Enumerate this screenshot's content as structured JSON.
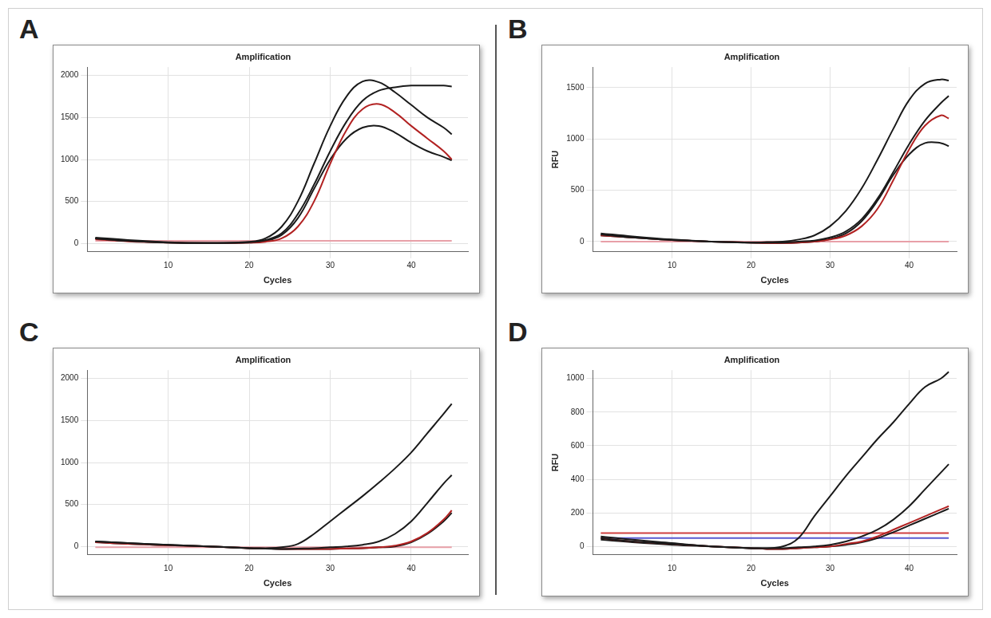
{
  "chart_data": [
    {
      "panel": "A",
      "type": "line",
      "title": "Amplification",
      "xlabel": "Cycles",
      "x": [
        1,
        5,
        10,
        15,
        20,
        22,
        24,
        26,
        28,
        30,
        32,
        34,
        36,
        38,
        40,
        42,
        44,
        45
      ],
      "xlim": [
        0,
        47
      ],
      "xticks": [
        10,
        20,
        30,
        40
      ],
      "ylim": [
        -100,
        2100
      ],
      "yticks": [
        0,
        500,
        1000,
        1500,
        2000
      ],
      "grid": true,
      "series": [
        {
          "color": "#1a1a1a",
          "values": [
            60,
            30,
            10,
            5,
            20,
            60,
            200,
            500,
            950,
            1400,
            1750,
            1930,
            1920,
            1800,
            1650,
            1500,
            1380,
            1300
          ]
        },
        {
          "color": "#1a1a1a",
          "values": [
            60,
            30,
            10,
            5,
            15,
            40,
            120,
            350,
            700,
            1100,
            1450,
            1700,
            1820,
            1860,
            1880,
            1880,
            1880,
            1870
          ]
        },
        {
          "color": "#b22222",
          "values": [
            50,
            25,
            10,
            5,
            10,
            20,
            60,
            200,
            500,
            950,
            1350,
            1600,
            1660,
            1560,
            1400,
            1250,
            1100,
            1000
          ]
        },
        {
          "color": "#1a1a1a",
          "values": [
            70,
            40,
            15,
            5,
            10,
            30,
            100,
            300,
            650,
            1000,
            1250,
            1380,
            1400,
            1320,
            1200,
            1100,
            1030,
            990
          ]
        },
        {
          "color": "#e8a0a8",
          "values": [
            30,
            30,
            30,
            30,
            30,
            30,
            30,
            30,
            30,
            30,
            30,
            30,
            30,
            30,
            30,
            30,
            30,
            30
          ]
        }
      ]
    },
    {
      "panel": "B",
      "type": "line",
      "title": "Amplification",
      "xlabel": "Cycles",
      "ylabel": "RFU",
      "x": [
        1,
        5,
        10,
        15,
        20,
        22,
        24,
        26,
        28,
        30,
        32,
        34,
        36,
        38,
        40,
        42,
        44,
        45
      ],
      "xlim": [
        0,
        46
      ],
      "xticks": [
        10,
        20,
        30,
        40
      ],
      "ylim": [
        -100,
        1700
      ],
      "yticks": [
        0,
        500,
        1000,
        1500
      ],
      "grid": true,
      "series": [
        {
          "color": "#1a1a1a",
          "values": [
            80,
            50,
            20,
            0,
            -10,
            -5,
            0,
            20,
            60,
            150,
            300,
            520,
            800,
            1100,
            1380,
            1540,
            1580,
            1570
          ]
        },
        {
          "color": "#1a1a1a",
          "values": [
            70,
            40,
            15,
            0,
            -10,
            -10,
            -10,
            0,
            10,
            40,
            100,
            220,
            420,
            680,
            950,
            1180,
            1350,
            1420
          ]
        },
        {
          "color": "#b22222",
          "values": [
            60,
            40,
            15,
            0,
            -10,
            -15,
            -15,
            -10,
            0,
            20,
            60,
            150,
            320,
            600,
            900,
            1130,
            1230,
            1200
          ]
        },
        {
          "color": "#1a1a1a",
          "values": [
            60,
            40,
            15,
            0,
            -10,
            -15,
            -15,
            -10,
            0,
            25,
            80,
            200,
            400,
            650,
            850,
            960,
            960,
            930
          ]
        },
        {
          "color": "#e8a0a8",
          "values": [
            0,
            0,
            0,
            0,
            0,
            0,
            0,
            0,
            0,
            0,
            0,
            0,
            0,
            0,
            0,
            0,
            0,
            0
          ]
        }
      ]
    },
    {
      "panel": "C",
      "type": "line",
      "title": "Amplification",
      "xlabel": "Cycles",
      "x": [
        1,
        5,
        10,
        15,
        20,
        22,
        24,
        26,
        28,
        30,
        32,
        34,
        36,
        38,
        40,
        42,
        44,
        45
      ],
      "xlim": [
        0,
        47
      ],
      "xticks": [
        10,
        20,
        30,
        40
      ],
      "ylim": [
        -100,
        2100
      ],
      "yticks": [
        0,
        500,
        1000,
        1500,
        2000
      ],
      "grid": true,
      "series": [
        {
          "color": "#1a1a1a",
          "values": [
            60,
            40,
            20,
            0,
            -20,
            -20,
            -10,
            30,
            150,
            300,
            450,
            600,
            760,
            930,
            1120,
            1350,
            1580,
            1700
          ]
        },
        {
          "color": "#1a1a1a",
          "values": [
            60,
            40,
            20,
            0,
            -20,
            -25,
            -30,
            -25,
            -20,
            -10,
            0,
            20,
            60,
            150,
            300,
            520,
            750,
            850
          ]
        },
        {
          "color": "#b22222",
          "values": [
            50,
            30,
            15,
            0,
            -20,
            -25,
            -30,
            -30,
            -30,
            -30,
            -25,
            -20,
            -10,
            10,
            60,
            160,
            320,
            430
          ]
        },
        {
          "color": "#1a1a1a",
          "values": [
            50,
            30,
            15,
            0,
            -20,
            -25,
            -30,
            -30,
            -30,
            -30,
            -25,
            -20,
            -10,
            0,
            50,
            150,
            300,
            400
          ]
        },
        {
          "color": "#e8a0a8",
          "values": [
            -10,
            -10,
            -10,
            -10,
            -10,
            -10,
            -10,
            -10,
            -10,
            -10,
            -10,
            -10,
            -10,
            -10,
            -10,
            -10,
            -10,
            -10
          ]
        }
      ]
    },
    {
      "panel": "D",
      "type": "line",
      "title": "Amplification",
      "xlabel": "Cycles",
      "ylabel": "RFU",
      "x": [
        1,
        5,
        10,
        15,
        20,
        22,
        24,
        26,
        28,
        30,
        32,
        34,
        36,
        38,
        40,
        42,
        44,
        45
      ],
      "xlim": [
        0,
        46
      ],
      "xticks": [
        10,
        20,
        30,
        40
      ],
      "ylim": [
        -50,
        1050
      ],
      "yticks": [
        0,
        200,
        400,
        600,
        800,
        1000
      ],
      "grid": true,
      "series": [
        {
          "color": "#1a1a1a",
          "values": [
            60,
            40,
            20,
            0,
            -10,
            -10,
            0,
            50,
            180,
            300,
            420,
            530,
            640,
            740,
            850,
            950,
            1000,
            1040
          ]
        },
        {
          "color": "#1a1a1a",
          "values": [
            50,
            30,
            15,
            0,
            -10,
            -10,
            -10,
            -5,
            0,
            10,
            30,
            60,
            100,
            160,
            240,
            340,
            440,
            490
          ]
        },
        {
          "color": "#b22222",
          "values": [
            50,
            30,
            15,
            0,
            -10,
            -15,
            -15,
            -10,
            -5,
            0,
            15,
            30,
            60,
            100,
            140,
            180,
            220,
            240
          ]
        },
        {
          "color": "#1a1a1a",
          "values": [
            40,
            25,
            10,
            0,
            -10,
            -15,
            -15,
            -10,
            -5,
            0,
            10,
            25,
            50,
            85,
            125,
            165,
            205,
            225
          ]
        },
        {
          "color": "#d04040",
          "values": [
            80,
            80,
            80,
            80,
            80,
            80,
            80,
            80,
            80,
            80,
            80,
            80,
            80,
            80,
            80,
            80,
            80,
            80
          ]
        },
        {
          "color": "#5a5ad0",
          "values": [
            50,
            50,
            50,
            50,
            50,
            50,
            50,
            50,
            50,
            50,
            50,
            50,
            50,
            50,
            50,
            50,
            50,
            50
          ]
        }
      ]
    }
  ]
}
